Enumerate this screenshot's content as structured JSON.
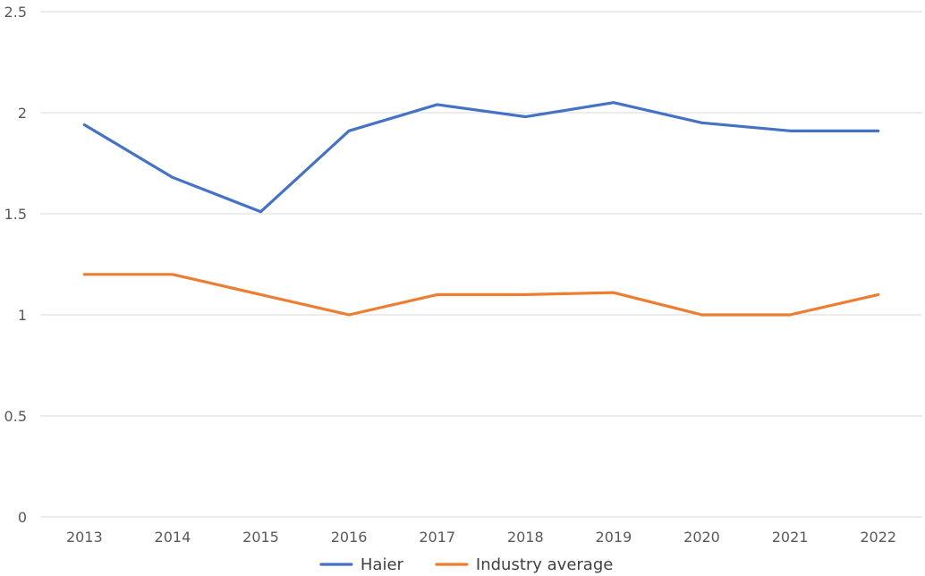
{
  "chart_data": {
    "type": "line",
    "title": "",
    "xlabel": "",
    "ylabel": "",
    "categories": [
      "2013",
      "2014",
      "2015",
      "2016",
      "2017",
      "2018",
      "2019",
      "2020",
      "2021",
      "2022"
    ],
    "yticks": [
      "0",
      "0.5",
      "1",
      "1.5",
      "2",
      "2.5"
    ],
    "ylim": [
      0,
      2.5
    ],
    "grid": true,
    "legend_position": "bottom",
    "series": [
      {
        "name": "Haier",
        "color": "#4472c4",
        "values": [
          1.94,
          1.68,
          1.51,
          1.91,
          2.04,
          1.98,
          2.05,
          1.95,
          1.91,
          1.91
        ]
      },
      {
        "name": "Industry average",
        "color": "#ed7d31",
        "values": [
          1.2,
          1.2,
          1.1,
          1.0,
          1.1,
          1.1,
          1.11,
          1.0,
          1.0,
          1.1
        ]
      }
    ]
  }
}
